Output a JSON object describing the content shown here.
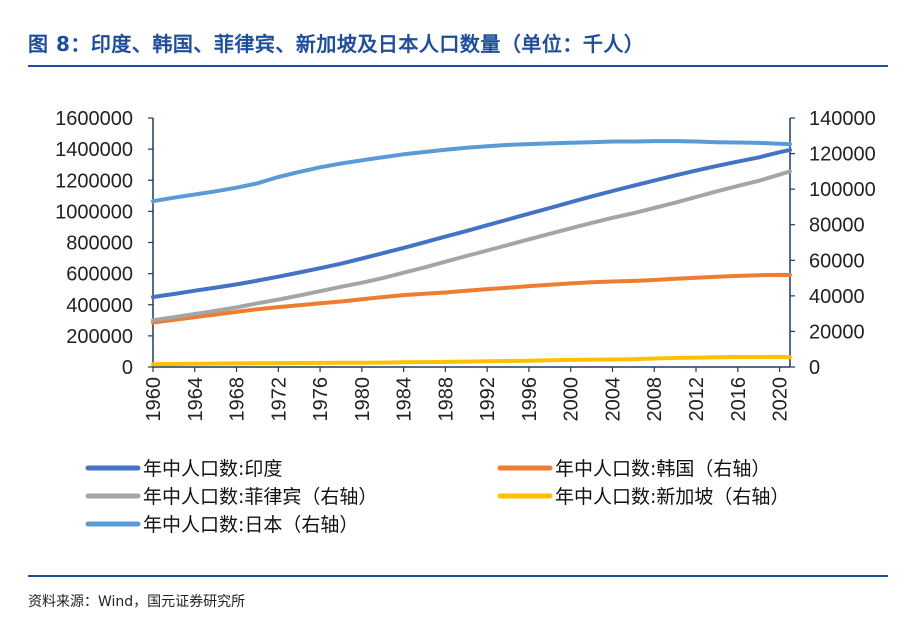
{
  "header": {
    "title": "图 8：印度、韩国、菲律宾、新加坡及日本人口数量（单位：千人）"
  },
  "footer": {
    "source": "资料来源：Wind，国元证券研究所"
  },
  "colors": {
    "india": "#4472C4",
    "korea": "#ED7D31",
    "philippines": "#A5A5A5",
    "singapore": "#FFC000",
    "japan": "#5B9BD5",
    "axis": "#1f3864",
    "title": "#1f4e9a"
  },
  "chart_data": {
    "type": "line",
    "x": [
      1960,
      1962,
      1964,
      1966,
      1968,
      1970,
      1972,
      1974,
      1976,
      1978,
      1980,
      1982,
      1984,
      1986,
      1988,
      1990,
      1992,
      1994,
      1996,
      1998,
      2000,
      2002,
      2004,
      2006,
      2008,
      2010,
      2012,
      2014,
      2016,
      2018,
      2020,
      2021
    ],
    "xticks": [
      "1960",
      "1964",
      "1968",
      "1972",
      "1976",
      "1980",
      "1984",
      "1988",
      "1992",
      "1996",
      "2000",
      "2004",
      "2008",
      "2012",
      "2016",
      "2020"
    ],
    "xlim": [
      1960,
      2021
    ],
    "ylim_left": [
      0,
      1600000
    ],
    "yticks_left": [
      "0",
      "200000",
      "400000",
      "600000",
      "800000",
      "1000000",
      "1200000",
      "1400000",
      "1600000"
    ],
    "ylim_right": [
      0,
      140000
    ],
    "yticks_right": [
      "0",
      "20000",
      "40000",
      "60000",
      "80000",
      "100000",
      "120000",
      "140000"
    ],
    "legend_position": "bottom",
    "grid": false,
    "series": [
      {
        "name": "年中人口数:印度",
        "axis": "left",
        "color_key": "india",
        "values": [
          450000,
          469000,
          490000,
          510000,
          531000,
          555000,
          580000,
          607000,
          635000,
          664000,
          697000,
          731000,
          765000,
          801000,
          838000,
          873000,
          911000,
          948000,
          985000,
          1022000,
          1059000,
          1096000,
          1131000,
          1165000,
          1198000,
          1231000,
          1262000,
          1292000,
          1320000,
          1347000,
          1380000,
          1395000
        ]
      },
      {
        "name": "年中人口数:韩国（右轴）",
        "axis": "right",
        "color_key": "korea",
        "values": [
          25000,
          26500,
          28000,
          29500,
          31000,
          32500,
          33700,
          34700,
          35800,
          36800,
          38100,
          39300,
          40400,
          41200,
          41900,
          42900,
          43800,
          44600,
          45500,
          46300,
          47000,
          47600,
          48100,
          48400,
          48900,
          49600,
          50200,
          50700,
          51200,
          51600,
          51800,
          51700
        ]
      },
      {
        "name": "年中人口数:菲律宾（右轴）",
        "axis": "right",
        "color_key": "philippines",
        "values": [
          26300,
          28000,
          29800,
          31600,
          33500,
          35800,
          37900,
          40200,
          42600,
          45100,
          47400,
          50000,
          53000,
          56000,
          59200,
          62400,
          65500,
          68600,
          71800,
          74900,
          78000,
          81000,
          83900,
          86500,
          89400,
          92400,
          95600,
          98800,
          101800,
          104700,
          108200,
          110000
        ]
      },
      {
        "name": "年中人口数:新加坡（右轴）",
        "axis": "right",
        "color_key": "singapore",
        "values": [
          1600,
          1700,
          1800,
          1900,
          2000,
          2100,
          2200,
          2250,
          2300,
          2350,
          2400,
          2500,
          2700,
          2750,
          2850,
          3050,
          3200,
          3370,
          3530,
          3800,
          4000,
          4150,
          4200,
          4400,
          4800,
          5100,
          5300,
          5450,
          5600,
          5650,
          5700,
          5500
        ]
      },
      {
        "name": "年中人口数:日本（右轴）",
        "axis": "right",
        "color_key": "japan",
        "values": [
          93200,
          95200,
          97000,
          98800,
          100800,
          103300,
          106800,
          109700,
          112300,
          114400,
          116200,
          117900,
          119600,
          120900,
          122200,
          123300,
          124100,
          124900,
          125300,
          125700,
          126100,
          126400,
          126800,
          126800,
          127000,
          127000,
          126800,
          126400,
          126200,
          126000,
          125500,
          125300
        ]
      }
    ]
  }
}
